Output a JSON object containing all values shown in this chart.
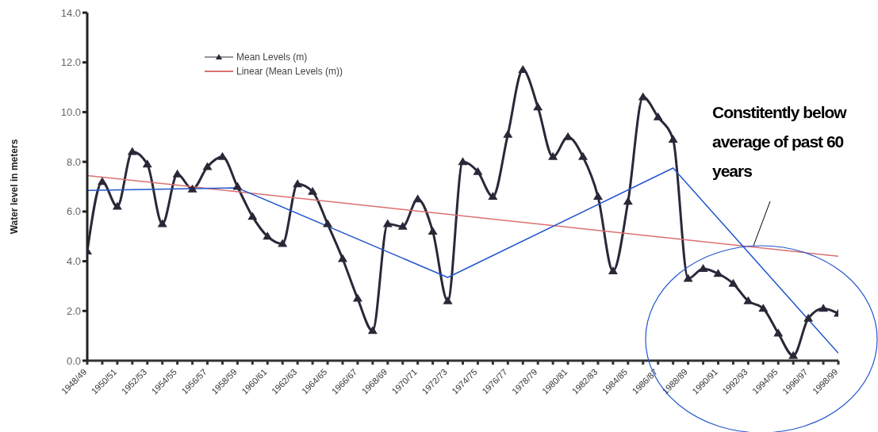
{
  "chart_data": {
    "type": "line",
    "ylabel": "Water level in meters",
    "categories": [
      "1948/49",
      null,
      "1950/51",
      null,
      "1952/53",
      null,
      "1954/55",
      null,
      "1956/57",
      null,
      "1958/59",
      null,
      "1960/61",
      null,
      "1962/63",
      null,
      "1964/65",
      null,
      "1966/67",
      null,
      "1968/69",
      null,
      "1970/71",
      null,
      "1972/73",
      null,
      "1974/75",
      null,
      "1976/77",
      null,
      "1978/79",
      null,
      "1980/81",
      null,
      "1982/83",
      null,
      "1984/85",
      null,
      "1986/87",
      null,
      "1988/89",
      null,
      "1990/91",
      null,
      "1992/93",
      null,
      "1994/95",
      null,
      "1996/97",
      null,
      "1998/99"
    ],
    "series": [
      {
        "name": "Mean Levels (m)",
        "color": "#2a2838",
        "marker": "triangle",
        "values": [
          4.4,
          7.2,
          6.2,
          8.4,
          7.9,
          5.5,
          7.5,
          6.9,
          7.8,
          8.2,
          7.0,
          5.8,
          5.0,
          4.7,
          7.1,
          6.8,
          5.5,
          4.1,
          2.5,
          1.2,
          5.5,
          5.4,
          6.5,
          5.2,
          2.4,
          8.0,
          7.6,
          6.6,
          9.1,
          11.7,
          10.2,
          8.2,
          9.0,
          8.2,
          6.6,
          3.6,
          6.4,
          10.6,
          9.8,
          8.9,
          3.3,
          3.7,
          3.5,
          3.1,
          2.4,
          2.1,
          1.1,
          0.2,
          1.7,
          2.1,
          1.9
        ]
      },
      {
        "name": "Linear (Mean Levels (m))",
        "color": "#d97070",
        "marker": "none",
        "values": [
          7.45,
          null,
          null,
          null,
          null,
          null,
          null,
          null,
          null,
          null,
          null,
          null,
          null,
          null,
          null,
          null,
          null,
          null,
          null,
          null,
          null,
          null,
          null,
          null,
          null,
          null,
          null,
          null,
          null,
          null,
          null,
          null,
          null,
          null,
          null,
          null,
          null,
          null,
          null,
          null,
          null,
          null,
          null,
          null,
          null,
          null,
          null,
          null,
          null,
          null,
          4.2
        ]
      },
      {
        "color": "#2255cc",
        "marker": "none",
        "values": [
          6.85,
          null,
          null,
          null,
          null,
          null,
          null,
          null,
          null,
          null,
          6.95,
          null,
          null,
          null,
          null,
          null,
          null,
          null,
          null,
          null,
          null,
          null,
          null,
          null,
          3.35,
          null,
          null,
          null,
          null,
          null,
          null,
          null,
          null,
          null,
          null,
          null,
          null,
          null,
          null,
          7.75,
          null,
          null,
          null,
          null,
          null,
          null,
          null,
          null,
          null,
          null,
          0.3
        ]
      }
    ],
    "ylim": [
      0,
      14
    ],
    "yticks": [
      {
        "value": 0,
        "label": "0.0"
      },
      {
        "value": 2,
        "label": "2.0"
      },
      {
        "value": 4,
        "label": "4.0"
      },
      {
        "value": 6,
        "label": "6.0"
      },
      {
        "value": 8,
        "label": "8.0"
      },
      {
        "value": 10,
        "label": "10.0"
      },
      {
        "value": 12,
        "label": "12.0"
      },
      {
        "value": 14,
        "label": "14.0"
      }
    ],
    "grid": false,
    "legend": "top left",
    "annotations": [
      "Constitently below average of past 60 years"
    ]
  }
}
